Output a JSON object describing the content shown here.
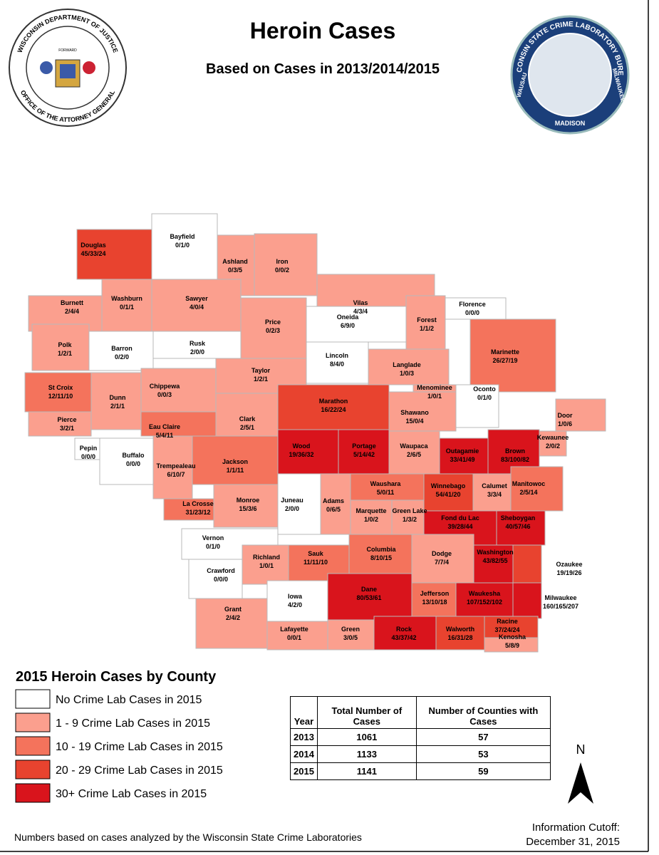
{
  "header": {
    "title": "Heroin Cases",
    "subtitle": "Based on Cases in 2013/2014/2015"
  },
  "logos": {
    "left": {
      "top": "WISCONSIN DEPARTMENT OF JUSTICE",
      "bottom": "OFFICE OF THE ATTORNEY GENERAL",
      "banner": "FORWARD"
    },
    "right": {
      "top": "WISCONSIN STATE CRIME LABORATORY BUREAU",
      "left": "WAUSAU",
      "bottom": "MADISON",
      "right": "MILWAUKEE"
    }
  },
  "counties": [
    {
      "name": "Douglas",
      "cases": "45/33/24",
      "color": "#e8432f"
    },
    {
      "name": "Bayfield",
      "cases": "0/1/0",
      "color": "#ffffff"
    },
    {
      "name": "Ashland",
      "cases": "0/3/5",
      "color": "#fb9f8e"
    },
    {
      "name": "Iron",
      "cases": "0/0/2",
      "color": "#fb9f8e"
    },
    {
      "name": "Vilas",
      "cases": "4/3/4",
      "color": "#fb9f8e"
    },
    {
      "name": "Washburn",
      "cases": "0/1/1",
      "color": "#fb9f8e"
    },
    {
      "name": "Burnett",
      "cases": "2/4/4",
      "color": "#fb9f8e"
    },
    {
      "name": "Sawyer",
      "cases": "4/0/4",
      "color": "#fb9f8e"
    },
    {
      "name": "Price",
      "cases": "0/2/3",
      "color": "#fb9f8e"
    },
    {
      "name": "Oneida",
      "cases": "6/9/0",
      "color": "#ffffff"
    },
    {
      "name": "Forest",
      "cases": "1/1/2",
      "color": "#fb9f8e"
    },
    {
      "name": "Florence",
      "cases": "0/0/0",
      "color": "#ffffff"
    },
    {
      "name": "Marinette",
      "cases": "26/27/19",
      "color": "#f4735c"
    },
    {
      "name": "Polk",
      "cases": "1/2/1",
      "color": "#fb9f8e"
    },
    {
      "name": "Barron",
      "cases": "0/2/0",
      "color": "#ffffff"
    },
    {
      "name": "Rusk",
      "cases": "2/0/0",
      "color": "#ffffff"
    },
    {
      "name": "Lincoln",
      "cases": "8/4/0",
      "color": "#ffffff"
    },
    {
      "name": "Taylor",
      "cases": "1/2/1",
      "color": "#fb9f8e"
    },
    {
      "name": "Langlade",
      "cases": "1/0/3",
      "color": "#fb9f8e"
    },
    {
      "name": "Chippewa",
      "cases": "0/0/3",
      "color": "#fb9f8e"
    },
    {
      "name": "St Croix",
      "cases": "12/11/10",
      "color": "#f4735c"
    },
    {
      "name": "Dunn",
      "cases": "2/1/1",
      "color": "#fb9f8e"
    },
    {
      "name": "Menominee",
      "cases": "1/0/1",
      "color": "#fb9f8e"
    },
    {
      "name": "Oconto",
      "cases": "0/1/0",
      "color": "#ffffff"
    },
    {
      "name": "Door",
      "cases": "1/0/6",
      "color": "#fb9f8e"
    },
    {
      "name": "Marathon",
      "cases": "16/22/24",
      "color": "#e8432f"
    },
    {
      "name": "Clark",
      "cases": "2/5/1",
      "color": "#fb9f8e"
    },
    {
      "name": "Eau Claire",
      "cases": "5/4/11",
      "color": "#f4735c"
    },
    {
      "name": "Pierce",
      "cases": "3/2/1",
      "color": "#fb9f8e"
    },
    {
      "name": "Shawano",
      "cases": "15/0/4",
      "color": "#fb9f8e"
    },
    {
      "name": "Kewaunee",
      "cases": "2/0/2",
      "color": "#fb9f8e"
    },
    {
      "name": "Wood",
      "cases": "19/36/32",
      "color": "#d9141c"
    },
    {
      "name": "Portage",
      "cases": "5/14/42",
      "color": "#d9141c"
    },
    {
      "name": "Waupaca",
      "cases": "2/6/5",
      "color": "#fb9f8e"
    },
    {
      "name": "Outagamie",
      "cases": "33/41/49",
      "color": "#d9141c"
    },
    {
      "name": "Brown",
      "cases": "83/100/82",
      "color": "#d9141c"
    },
    {
      "name": "Pepin",
      "cases": "0/0/0",
      "color": "#ffffff"
    },
    {
      "name": "Buffalo",
      "cases": "0/0/0",
      "color": "#ffffff"
    },
    {
      "name": "Trempealeau",
      "cases": "6/10/7",
      "color": "#fb9f8e"
    },
    {
      "name": "Jackson",
      "cases": "1/1/11",
      "color": "#f4735c"
    },
    {
      "name": "Manitowoc",
      "cases": "2/5/14",
      "color": "#f4735c"
    },
    {
      "name": "Waushara",
      "cases": "5/0/11",
      "color": "#f4735c"
    },
    {
      "name": "Winnebago",
      "cases": "54/41/20",
      "color": "#e8432f"
    },
    {
      "name": "Calumet",
      "cases": "3/3/4",
      "color": "#fb9f8e"
    },
    {
      "name": "La Crosse",
      "cases": "31/23/12",
      "color": "#f4735c"
    },
    {
      "name": "Monroe",
      "cases": "15/3/6",
      "color": "#fb9f8e"
    },
    {
      "name": "Juneau",
      "cases": "2/0/0",
      "color": "#ffffff"
    },
    {
      "name": "Adams",
      "cases": "0/6/5",
      "color": "#fb9f8e"
    },
    {
      "name": "Marquette",
      "cases": "1/0/2",
      "color": "#fb9f8e"
    },
    {
      "name": "Green Lake",
      "cases": "1/3/2",
      "color": "#fb9f8e"
    },
    {
      "name": "Fond du Lac",
      "cases": "39/28/44",
      "color": "#d9141c"
    },
    {
      "name": "Sheboygan",
      "cases": "40/57/46",
      "color": "#d9141c"
    },
    {
      "name": "Vernon",
      "cases": "0/1/0",
      "color": "#ffffff"
    },
    {
      "name": "Richland",
      "cases": "1/0/1",
      "color": "#fb9f8e"
    },
    {
      "name": "Sauk",
      "cases": "11/11/10",
      "color": "#f4735c"
    },
    {
      "name": "Columbia",
      "cases": "8/10/15",
      "color": "#f4735c"
    },
    {
      "name": "Dodge",
      "cases": "7/7/4",
      "color": "#fb9f8e"
    },
    {
      "name": "Washington",
      "cases": "43/82/55",
      "color": "#d9141c"
    },
    {
      "name": "Ozaukee",
      "cases": "19/19/26",
      "color": "#e8432f"
    },
    {
      "name": "Crawford",
      "cases": "0/0/0",
      "color": "#ffffff"
    },
    {
      "name": "Grant",
      "cases": "2/4/2",
      "color": "#fb9f8e"
    },
    {
      "name": "Iowa",
      "cases": "4/2/0",
      "color": "#ffffff"
    },
    {
      "name": "Dane",
      "cases": "80/53/61",
      "color": "#d9141c"
    },
    {
      "name": "Jefferson",
      "cases": "13/10/18",
      "color": "#f4735c"
    },
    {
      "name": "Waukesha",
      "cases": "107/152/102",
      "color": "#d9141c"
    },
    {
      "name": "Milwaukee",
      "cases": "160/165/207",
      "color": "#d9141c"
    },
    {
      "name": "Lafayette",
      "cases": "0/0/1",
      "color": "#fb9f8e"
    },
    {
      "name": "Green",
      "cases": "3/0/5",
      "color": "#fb9f8e"
    },
    {
      "name": "Rock",
      "cases": "43/37/42",
      "color": "#d9141c"
    },
    {
      "name": "Walworth",
      "cases": "16/31/28",
      "color": "#e8432f"
    },
    {
      "name": "Racine",
      "cases": "37/24/24",
      "color": "#e8432f"
    },
    {
      "name": "Kenosha",
      "cases": "5/8/9",
      "color": "#fb9f8e"
    }
  ],
  "legend": {
    "title": "2015 Heroin Cases by County",
    "items": [
      {
        "label": "No Crime Lab Cases in 2015",
        "color": "#ffffff"
      },
      {
        "label": "1 - 9 Crime Lab Cases in 2015",
        "color": "#fb9f8e"
      },
      {
        "label": "10 - 19 Crime Lab Cases in 2015",
        "color": "#f4735c"
      },
      {
        "label": "20 - 29 Crime Lab Cases in 2015",
        "color": "#e8432f"
      },
      {
        "label": "30+ Crime Lab Cases in 2015",
        "color": "#d9141c"
      }
    ]
  },
  "table": {
    "header": [
      "Year",
      "Total Number of Cases",
      "Number of Counties with Cases"
    ],
    "rows": [
      [
        2013,
        1061,
        57
      ],
      [
        2014,
        1133,
        53
      ],
      [
        2015,
        1141,
        59
      ]
    ]
  },
  "north": "N",
  "footer": {
    "note": "Numbers based on cases analyzed by the Wisconsin State Crime Laboratories",
    "cutoff_label": "Information Cutoff:",
    "cutoff_date": "December 31, 2015"
  }
}
